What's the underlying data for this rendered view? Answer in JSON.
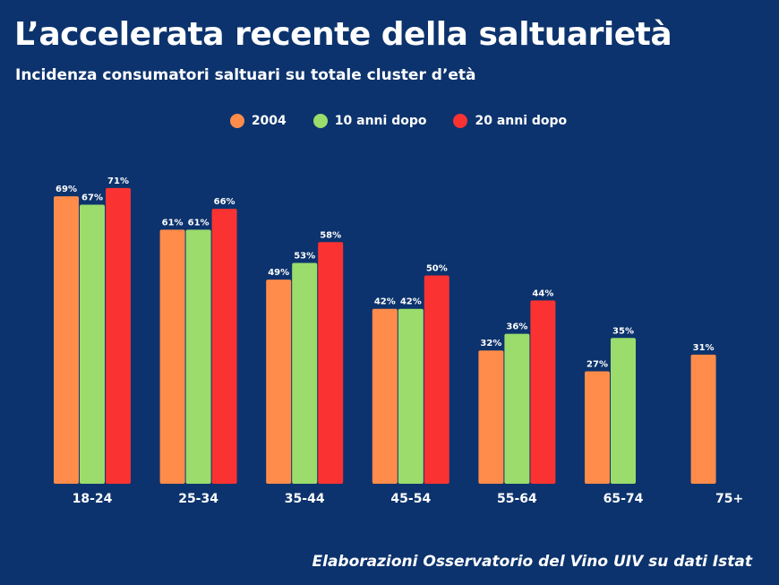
{
  "title": "L’accelerata recente della saltuarietà",
  "subtitle": "Incidenza consumatori saltuari su totale cluster d’età",
  "source": "Elaborazioni Osservatorio del Vino UIV su dati Istat",
  "colors": {
    "background": "#0c336d",
    "2004": "#ff8c4a",
    "10 anni dopo": "#9bdc6c",
    "20 anni dopo": "#fa3232"
  },
  "chart_data": {
    "type": "bar",
    "categories": [
      "18-24",
      "25-34",
      "35-44",
      "45-54",
      "55-64",
      "65-74",
      "75+"
    ],
    "series": [
      {
        "name": "2004",
        "color": "#ff8c4a",
        "values": [
          69,
          61,
          49,
          42,
          32,
          27,
          31
        ],
        "labels": [
          "69%",
          "61%",
          "49%",
          "42%",
          "32%",
          "27%",
          "31%"
        ]
      },
      {
        "name": "10 anni dopo",
        "color": "#9bdc6c",
        "values": [
          67,
          61,
          53,
          42,
          36,
          35,
          null
        ],
        "labels": [
          "67%",
          "61%",
          "53%",
          "42%",
          "36%",
          "35%",
          null
        ]
      },
      {
        "name": "20 anni dopo",
        "color": "#fa3232",
        "values": [
          71,
          66,
          58,
          50,
          44,
          null,
          null
        ],
        "labels": [
          "71%",
          "66%",
          "58%",
          "50%",
          "44%",
          null,
          null
        ]
      }
    ],
    "unit": "%",
    "ylim": [
      0,
      75
    ],
    "grid": false,
    "legend": "top-center"
  }
}
